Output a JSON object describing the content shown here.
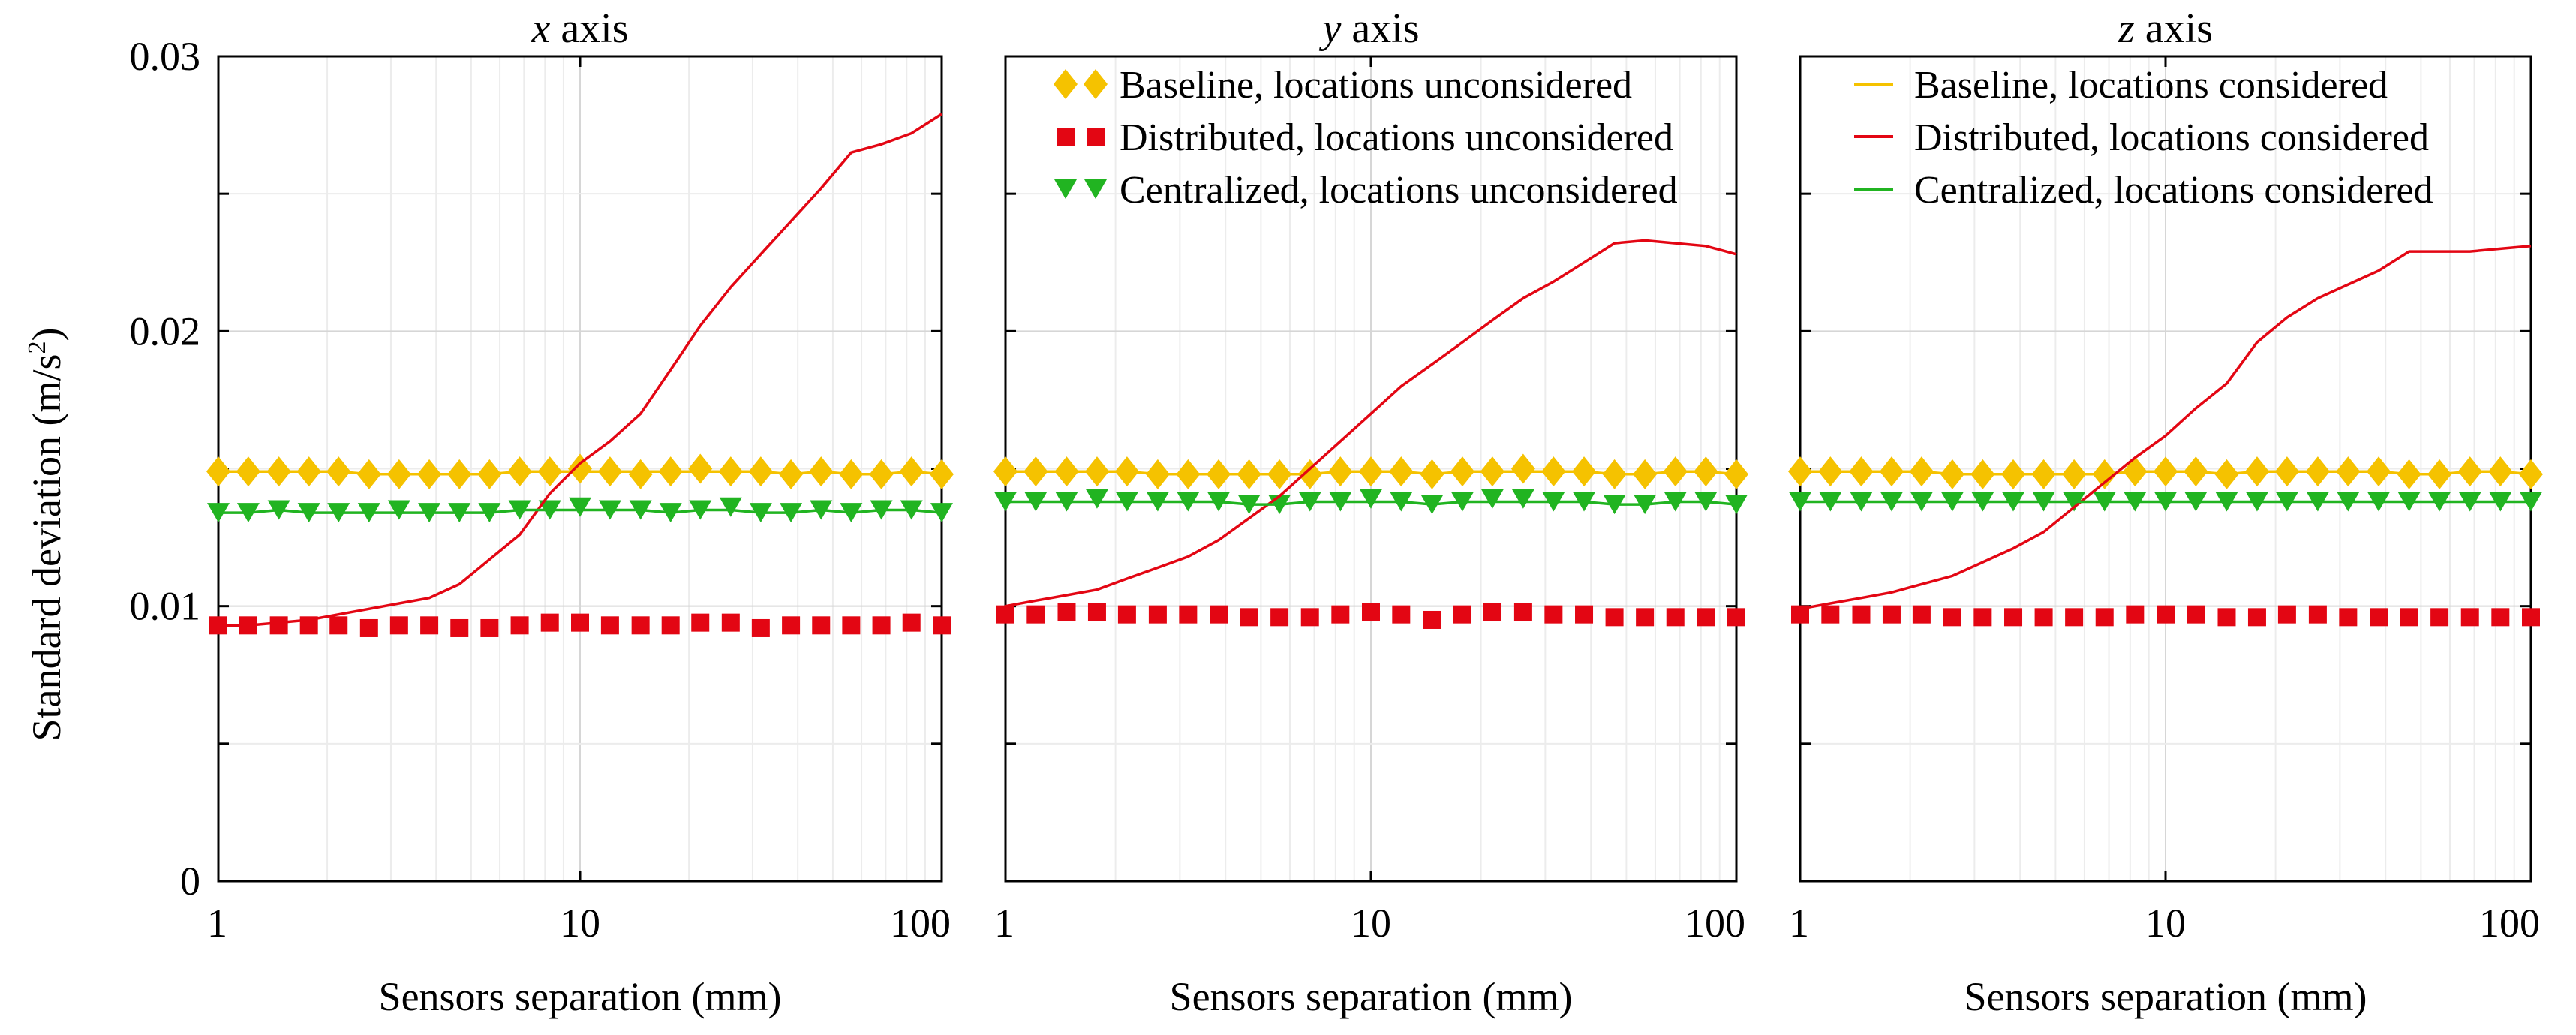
{
  "figure": {
    "ylabel_main": "Standard deviation (m/s",
    "ylabel_sup": "2",
    "ylabel_end": ")"
  },
  "chart_data": [
    {
      "type": "line",
      "title_italic": "x",
      "title_rest": " axis",
      "xlabel": "Sensors separation (mm)",
      "ylabel": "Standard deviation (m/s2)",
      "xscale": "log",
      "xlim": [
        1,
        100
      ],
      "ylim": [
        0,
        0.03
      ],
      "xticks": [
        1,
        10,
        100
      ],
      "xtick_labels": [
        "1",
        "10",
        "100"
      ],
      "yticks": [
        0,
        0.01,
        0.02,
        0.03
      ],
      "ytick_labels": [
        "0",
        "0.01",
        "0.02",
        "0.03"
      ],
      "grid": true,
      "legend": null,
      "x": [
        1,
        1.21,
        1.47,
        1.78,
        2.15,
        2.61,
        3.16,
        3.83,
        4.64,
        5.62,
        6.81,
        8.25,
        10,
        12.1,
        14.7,
        17.8,
        21.5,
        26.1,
        31.6,
        38.3,
        46.4,
        56.2,
        68.1,
        82.5,
        100
      ],
      "series": [
        {
          "name": "Baseline, locations unconsidered",
          "marker": "diamond",
          "color": "#F5C200",
          "values": [
            0.0149,
            0.0149,
            0.0149,
            0.0149,
            0.0149,
            0.0148,
            0.0148,
            0.0148,
            0.0148,
            0.0148,
            0.0149,
            0.0149,
            0.015,
            0.0149,
            0.0148,
            0.0149,
            0.015,
            0.0149,
            0.0149,
            0.0148,
            0.0149,
            0.0148,
            0.0148,
            0.0149,
            0.0148
          ]
        },
        {
          "name": "Distributed, locations unconsidered",
          "marker": "square",
          "color": "#E30613",
          "values": [
            0.0093,
            0.0093,
            0.0093,
            0.0093,
            0.0093,
            0.0092,
            0.0093,
            0.0093,
            0.0092,
            0.0092,
            0.0093,
            0.0094,
            0.0094,
            0.0093,
            0.0093,
            0.0093,
            0.0094,
            0.0094,
            0.0092,
            0.0093,
            0.0093,
            0.0093,
            0.0093,
            0.0094,
            0.0093
          ]
        },
        {
          "name": "Centralized, locations unconsidered",
          "marker": "triangle-down",
          "color": "#21B421",
          "values": [
            0.0134,
            0.0134,
            0.0135,
            0.0134,
            0.0134,
            0.0134,
            0.0135,
            0.0134,
            0.0134,
            0.0134,
            0.0135,
            0.0135,
            0.0136,
            0.0135,
            0.0135,
            0.0134,
            0.0135,
            0.0136,
            0.0134,
            0.0134,
            0.0135,
            0.0134,
            0.0135,
            0.0135,
            0.0134
          ]
        },
        {
          "name": "Baseline, locations considered",
          "marker": "line",
          "color": "#F5C200",
          "values": [
            0.0149,
            0.0149,
            0.0149,
            0.0149,
            0.0149,
            0.0148,
            0.0148,
            0.0148,
            0.0148,
            0.0148,
            0.0149,
            0.0149,
            0.0149,
            0.0149,
            0.0149,
            0.0149,
            0.0149,
            0.0149,
            0.0149,
            0.0148,
            0.0149,
            0.0148,
            0.0148,
            0.0149,
            0.0148
          ]
        },
        {
          "name": "Distributed, locations considered",
          "marker": "line",
          "color": "#E30613",
          "values": [
            0.0093,
            0.0093,
            0.0094,
            0.0095,
            0.0097,
            0.0099,
            0.0101,
            0.0103,
            0.0108,
            0.0117,
            0.0126,
            0.0141,
            0.0152,
            0.016,
            0.017,
            0.0186,
            0.0202,
            0.0216,
            0.0228,
            0.024,
            0.0252,
            0.0265,
            0.0268,
            0.0272,
            0.0279
          ]
        },
        {
          "name": "Centralized, locations considered",
          "marker": "line",
          "color": "#21B421",
          "values": [
            0.0134,
            0.0134,
            0.0135,
            0.0134,
            0.0134,
            0.0134,
            0.0134,
            0.0134,
            0.0134,
            0.0134,
            0.0135,
            0.0135,
            0.0135,
            0.0135,
            0.0135,
            0.0134,
            0.0135,
            0.0135,
            0.0134,
            0.0134,
            0.0135,
            0.0134,
            0.0135,
            0.0135,
            0.0134
          ]
        }
      ]
    },
    {
      "type": "line",
      "title_italic": "y",
      "title_rest": " axis",
      "xlabel": "Sensors separation (mm)",
      "ylabel": "Standard deviation (m/s2)",
      "xscale": "log",
      "xlim": [
        1,
        100
      ],
      "ylim": [
        0,
        0.03
      ],
      "xticks": [
        1,
        10,
        100
      ],
      "xtick_labels": [
        "1",
        "10",
        "100"
      ],
      "yticks": [
        0,
        0.01,
        0.02,
        0.03
      ],
      "ytick_labels": [
        "",
        "",
        "",
        ""
      ],
      "grid": true,
      "legend": {
        "position": "top",
        "entries": [
          {
            "label": "Baseline, locations unconsidered",
            "marker": "diamond",
            "color": "#F5C200"
          },
          {
            "label": "Distributed, locations unconsidered",
            "marker": "square",
            "color": "#E30613"
          },
          {
            "label": "Centralized, locations unconsidered",
            "marker": "triangle-down",
            "color": "#21B421"
          }
        ]
      },
      "x": [
        1,
        1.21,
        1.47,
        1.78,
        2.15,
        2.61,
        3.16,
        3.83,
        4.64,
        5.62,
        6.81,
        8.25,
        10,
        12.1,
        14.7,
        17.8,
        21.5,
        26.1,
        31.6,
        38.3,
        46.4,
        56.2,
        68.1,
        82.5,
        100
      ],
      "series": [
        {
          "name": "Baseline, locations unconsidered",
          "marker": "diamond",
          "color": "#F5C200",
          "values": [
            0.0149,
            0.0149,
            0.0149,
            0.0149,
            0.0149,
            0.0148,
            0.0148,
            0.0148,
            0.0148,
            0.0148,
            0.0148,
            0.0149,
            0.0149,
            0.0149,
            0.0148,
            0.0149,
            0.0149,
            0.015,
            0.0149,
            0.0149,
            0.0148,
            0.0148,
            0.0149,
            0.0149,
            0.0148
          ]
        },
        {
          "name": "Distributed, locations unconsidered",
          "marker": "square",
          "color": "#E30613",
          "values": [
            0.0097,
            0.0097,
            0.0098,
            0.0098,
            0.0097,
            0.0097,
            0.0097,
            0.0097,
            0.0096,
            0.0096,
            0.0096,
            0.0097,
            0.0098,
            0.0097,
            0.0095,
            0.0097,
            0.0098,
            0.0098,
            0.0097,
            0.0097,
            0.0096,
            0.0096,
            0.0096,
            0.0096,
            0.0096
          ]
        },
        {
          "name": "Centralized, locations unconsidered",
          "marker": "triangle-down",
          "color": "#21B421",
          "values": [
            0.0138,
            0.0138,
            0.0138,
            0.0139,
            0.0138,
            0.0138,
            0.0138,
            0.0138,
            0.0137,
            0.0137,
            0.0138,
            0.0138,
            0.0139,
            0.0138,
            0.0137,
            0.0138,
            0.0139,
            0.0139,
            0.0138,
            0.0138,
            0.0137,
            0.0137,
            0.0138,
            0.0138,
            0.0137
          ]
        },
        {
          "name": "Baseline, locations considered",
          "marker": "line",
          "color": "#F5C200",
          "values": [
            0.0149,
            0.0149,
            0.0149,
            0.0149,
            0.0149,
            0.0148,
            0.0148,
            0.0148,
            0.0148,
            0.0148,
            0.0148,
            0.0149,
            0.0149,
            0.0149,
            0.0148,
            0.0149,
            0.0149,
            0.0149,
            0.0149,
            0.0149,
            0.0148,
            0.0148,
            0.0149,
            0.0149,
            0.0148
          ]
        },
        {
          "name": "Distributed, locations considered",
          "marker": "line",
          "color": "#E30613",
          "values": [
            0.01,
            0.0102,
            0.0104,
            0.0106,
            0.011,
            0.0114,
            0.0118,
            0.0124,
            0.0132,
            0.014,
            0.015,
            0.016,
            0.017,
            0.018,
            0.0188,
            0.0196,
            0.0204,
            0.0212,
            0.0218,
            0.0225,
            0.0232,
            0.0233,
            0.0232,
            0.0231,
            0.0228
          ]
        },
        {
          "name": "Centralized, locations considered",
          "marker": "line",
          "color": "#21B421",
          "values": [
            0.0138,
            0.0138,
            0.0138,
            0.0138,
            0.0138,
            0.0138,
            0.0138,
            0.0138,
            0.0137,
            0.0137,
            0.0138,
            0.0138,
            0.0138,
            0.0138,
            0.0137,
            0.0138,
            0.0138,
            0.0138,
            0.0138,
            0.0138,
            0.0137,
            0.0137,
            0.0138,
            0.0138,
            0.0137
          ]
        }
      ]
    },
    {
      "type": "line",
      "title_italic": "z",
      "title_rest": " axis",
      "xlabel": "Sensors separation (mm)",
      "ylabel": "Standard deviation (m/s2)",
      "xscale": "log",
      "xlim": [
        1,
        100
      ],
      "ylim": [
        0,
        0.03
      ],
      "xticks": [
        1,
        10,
        100
      ],
      "xtick_labels": [
        "1",
        "10",
        "100"
      ],
      "yticks": [
        0,
        0.01,
        0.02,
        0.03
      ],
      "ytick_labels": [
        "",
        "",
        "",
        ""
      ],
      "grid": true,
      "legend": {
        "position": "top",
        "entries": [
          {
            "label": "Baseline, locations considered",
            "marker": "line",
            "color": "#F5C200"
          },
          {
            "label": "Distributed, locations considered",
            "marker": "line",
            "color": "#E30613"
          },
          {
            "label": "Centralized, locations considered",
            "marker": "line",
            "color": "#21B421"
          }
        ]
      },
      "x": [
        1,
        1.21,
        1.47,
        1.78,
        2.15,
        2.61,
        3.16,
        3.83,
        4.64,
        5.62,
        6.81,
        8.25,
        10,
        12.1,
        14.7,
        17.8,
        21.5,
        26.1,
        31.6,
        38.3,
        46.4,
        56.2,
        68.1,
        82.5,
        100
      ],
      "series": [
        {
          "name": "Baseline, locations unconsidered",
          "marker": "diamond",
          "color": "#F5C200",
          "values": [
            0.0149,
            0.0149,
            0.0149,
            0.0149,
            0.0149,
            0.0148,
            0.0148,
            0.0148,
            0.0148,
            0.0148,
            0.0148,
            0.0149,
            0.0149,
            0.0149,
            0.0148,
            0.0149,
            0.0149,
            0.0149,
            0.0149,
            0.0149,
            0.0148,
            0.0148,
            0.0149,
            0.0149,
            0.0148
          ]
        },
        {
          "name": "Distributed, locations unconsidered",
          "marker": "square",
          "color": "#E30613",
          "values": [
            0.0097,
            0.0097,
            0.0097,
            0.0097,
            0.0097,
            0.0096,
            0.0096,
            0.0096,
            0.0096,
            0.0096,
            0.0096,
            0.0097,
            0.0097,
            0.0097,
            0.0096,
            0.0096,
            0.0097,
            0.0097,
            0.0096,
            0.0096,
            0.0096,
            0.0096,
            0.0096,
            0.0096,
            0.0096
          ]
        },
        {
          "name": "Centralized, locations unconsidered",
          "marker": "triangle-down",
          "color": "#21B421",
          "values": [
            0.0138,
            0.0138,
            0.0138,
            0.0138,
            0.0138,
            0.0138,
            0.0138,
            0.0138,
            0.0138,
            0.0138,
            0.0138,
            0.0138,
            0.0138,
            0.0138,
            0.0138,
            0.0138,
            0.0138,
            0.0138,
            0.0138,
            0.0138,
            0.0138,
            0.0138,
            0.0138,
            0.0138,
            0.0138
          ]
        },
        {
          "name": "Baseline, locations considered",
          "marker": "line",
          "color": "#F5C200",
          "values": [
            0.0149,
            0.0149,
            0.0149,
            0.0149,
            0.0149,
            0.0148,
            0.0148,
            0.0148,
            0.0148,
            0.0148,
            0.0148,
            0.0149,
            0.0149,
            0.0149,
            0.0148,
            0.0149,
            0.0149,
            0.0149,
            0.0149,
            0.0149,
            0.0148,
            0.0148,
            0.0149,
            0.0149,
            0.0148
          ]
        },
        {
          "name": "Distributed, locations considered",
          "marker": "line",
          "color": "#E30613",
          "values": [
            0.0099,
            0.0101,
            0.0103,
            0.0105,
            0.0108,
            0.0111,
            0.0116,
            0.0121,
            0.0127,
            0.0136,
            0.0145,
            0.0154,
            0.0162,
            0.0172,
            0.0181,
            0.0196,
            0.0205,
            0.0212,
            0.0217,
            0.0222,
            0.0229,
            0.0229,
            0.0229,
            0.023,
            0.0231
          ]
        },
        {
          "name": "Centralized, locations considered",
          "marker": "line",
          "color": "#21B421",
          "values": [
            0.0138,
            0.0138,
            0.0138,
            0.0138,
            0.0138,
            0.0138,
            0.0138,
            0.0138,
            0.0138,
            0.0138,
            0.0138,
            0.0138,
            0.0138,
            0.0138,
            0.0138,
            0.0138,
            0.0138,
            0.0138,
            0.0138,
            0.0138,
            0.0138,
            0.0138,
            0.0138,
            0.0138,
            0.0138
          ]
        }
      ]
    }
  ]
}
